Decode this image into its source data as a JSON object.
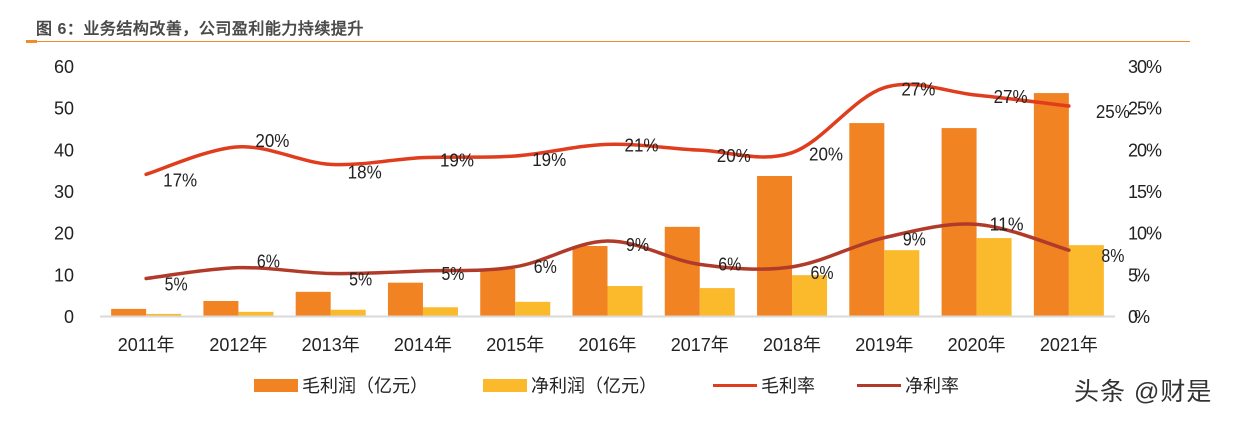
{
  "title": "图 6：业务结构改善，公司盈利能力持续提升",
  "watermark": "头条 @财是",
  "colors": {
    "gross_profit": "#f28322",
    "net_profit": "#fbb92c",
    "gross_margin": "#df3d1e",
    "net_margin": "#b13b2a",
    "axis": "#d9d9d9",
    "title_rule": "#f08a2c",
    "text": "#222222"
  },
  "chart_data": {
    "type": "bar",
    "combo": "bar+line",
    "title": "图 6：业务结构改善，公司盈利能力持续提升",
    "categories": [
      "2011年",
      "2012年",
      "2013年",
      "2014年",
      "2015年",
      "2016年",
      "2017年",
      "2018年",
      "2019年",
      "2020年",
      "2021年"
    ],
    "ylim_left": [
      0,
      60
    ],
    "yticks_left": [
      "0",
      "10",
      "20",
      "30",
      "40",
      "50",
      "60"
    ],
    "ylim_right": [
      0,
      30
    ],
    "yticks_right": [
      "0%",
      "5%",
      "10%",
      "15%",
      "20%",
      "25%",
      "30%"
    ],
    "grid": false,
    "legend_position": "bottom",
    "series": [
      {
        "name": "毛利润（亿元）",
        "type": "bar",
        "axis": "left",
        "values": [
          1.7,
          3.6,
          5.8,
          8.0,
          11.3,
          16.8,
          21.4,
          33.6,
          46.3,
          45.1,
          53.5
        ]
      },
      {
        "name": "净利润（亿元）",
        "type": "bar",
        "axis": "left",
        "values": [
          0.5,
          1.0,
          1.5,
          2.1,
          3.4,
          7.2,
          6.7,
          9.8,
          15.8,
          18.7,
          17.0
        ]
      },
      {
        "name": "毛利率",
        "type": "line",
        "axis": "right",
        "values": [
          17.0,
          20.3,
          18.2,
          19.0,
          19.2,
          20.6,
          19.9,
          19.6,
          27.4,
          26.5,
          25.2
        ],
        "labels": [
          "17%",
          "20%",
          "18%",
          "19%",
          "19%",
          "21%",
          "20%",
          "20%",
          "27%",
          "27%",
          "25%"
        ]
      },
      {
        "name": "净利率",
        "type": "line",
        "axis": "right",
        "values": [
          4.5,
          5.8,
          5.1,
          5.4,
          5.9,
          9.0,
          6.2,
          5.9,
          9.4,
          11.0,
          7.9
        ],
        "labels": [
          "5%",
          "6%",
          "5%",
          "5%",
          "6%",
          "9%",
          "6%",
          "6%",
          "9%",
          "11%",
          "8%"
        ]
      }
    ]
  }
}
